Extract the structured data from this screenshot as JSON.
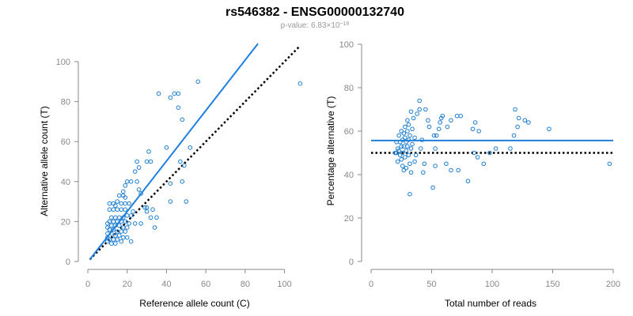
{
  "title": "rs546382 - ENSG00000132740",
  "subtitle": {
    "prefix": "p-value: ",
    "mantissa": "6.83",
    "times": "×",
    "base": "10",
    "exponent": "−18"
  },
  "colors": {
    "points": "#1f7fd0",
    "fit_line": "#1f7fe0",
    "reference_line": "#000000",
    "axis": "#888888"
  },
  "chart_data": [
    {
      "type": "scatter",
      "title": "",
      "xlabel": "Reference allele count (C)",
      "ylabel": "Alternative allele count (T)",
      "xlim": [
        0,
        105
      ],
      "ylim": [
        0,
        100
      ],
      "x_ticks": [
        0,
        20,
        40,
        60,
        80,
        100
      ],
      "y_ticks": [
        0,
        20,
        40,
        60,
        80,
        100
      ],
      "fit_line": {
        "x": [
          1,
          86.5
        ],
        "y": [
          1,
          109
        ]
      },
      "reference_line": {
        "x": [
          1,
          108
        ],
        "y": [
          1,
          108
        ]
      },
      "points": [
        [
          108,
          89
        ],
        [
          56,
          90
        ],
        [
          44,
          84
        ],
        [
          46,
          84
        ],
        [
          36,
          84
        ],
        [
          42,
          82
        ],
        [
          46,
          77
        ],
        [
          48,
          71
        ],
        [
          49,
          48
        ],
        [
          47,
          50
        ],
        [
          52,
          57
        ],
        [
          48,
          40
        ],
        [
          42,
          39
        ],
        [
          40,
          57
        ],
        [
          50,
          30
        ],
        [
          42,
          30
        ],
        [
          31,
          55
        ],
        [
          30,
          50
        ],
        [
          32,
          50
        ],
        [
          25,
          50
        ],
        [
          24,
          45
        ],
        [
          26,
          47
        ],
        [
          22,
          40
        ],
        [
          20,
          40
        ],
        [
          25,
          40
        ],
        [
          26,
          36
        ],
        [
          27,
          34
        ],
        [
          19,
          38
        ],
        [
          18,
          35
        ],
        [
          18,
          33
        ],
        [
          19,
          32
        ],
        [
          16,
          33
        ],
        [
          15,
          30
        ],
        [
          17,
          29
        ],
        [
          19,
          29
        ],
        [
          21,
          29
        ],
        [
          11,
          29
        ],
        [
          13,
          29
        ],
        [
          14,
          28
        ],
        [
          29,
          27
        ],
        [
          30,
          27
        ],
        [
          33,
          26
        ],
        [
          30,
          25
        ],
        [
          35,
          22
        ],
        [
          32,
          22
        ],
        [
          34,
          17
        ],
        [
          27,
          19
        ],
        [
          24,
          19
        ],
        [
          19,
          26
        ],
        [
          17,
          26
        ],
        [
          15,
          26
        ],
        [
          13,
          26
        ],
        [
          11,
          26
        ],
        [
          23,
          25
        ],
        [
          22,
          23
        ],
        [
          20,
          23
        ],
        [
          18,
          22
        ],
        [
          16,
          22
        ],
        [
          14,
          22
        ],
        [
          12,
          22
        ],
        [
          11,
          20
        ],
        [
          13,
          20
        ],
        [
          15,
          20
        ],
        [
          17,
          20
        ],
        [
          19,
          20
        ],
        [
          21,
          19
        ],
        [
          10,
          19
        ],
        [
          12,
          18
        ],
        [
          14,
          18
        ],
        [
          16,
          18
        ],
        [
          18,
          17
        ],
        [
          20,
          17
        ],
        [
          10,
          17
        ],
        [
          11,
          16
        ],
        [
          13,
          16
        ],
        [
          15,
          15
        ],
        [
          17,
          15
        ],
        [
          19,
          15
        ],
        [
          10,
          14
        ],
        [
          12,
          14
        ],
        [
          14,
          13
        ],
        [
          16,
          13
        ],
        [
          18,
          12
        ],
        [
          20,
          12
        ],
        [
          10,
          12
        ],
        [
          11,
          11
        ],
        [
          13,
          11
        ],
        [
          15,
          11
        ],
        [
          17,
          10
        ],
        [
          22,
          10
        ],
        [
          10,
          10
        ],
        [
          12,
          9
        ],
        [
          14,
          9
        ]
      ]
    },
    {
      "type": "scatter",
      "title": "",
      "xlabel": "Total number of reads",
      "ylabel": "Percentage alternative (T)",
      "xlim": [
        0,
        200
      ],
      "ylim": [
        0,
        100
      ],
      "x_ticks": [
        0,
        50,
        100,
        150,
        200
      ],
      "y_ticks": [
        0,
        20,
        40,
        60,
        80,
        100
      ],
      "fit_line": {
        "x": [
          0,
          200
        ],
        "y": [
          55.7,
          55.7
        ]
      },
      "reference_line": {
        "x": [
          0,
          200
        ],
        "y": [
          50,
          50
        ]
      },
      "points": [
        [
          197,
          45
        ],
        [
          147,
          61
        ],
        [
          130,
          64
        ],
        [
          127,
          65
        ],
        [
          122,
          66
        ],
        [
          119,
          70
        ],
        [
          121,
          62
        ],
        [
          118,
          58
        ],
        [
          115,
          52
        ],
        [
          103,
          52
        ],
        [
          98,
          50
        ],
        [
          93,
          45
        ],
        [
          89,
          60
        ],
        [
          86,
          64
        ],
        [
          84,
          61
        ],
        [
          80,
          37
        ],
        [
          85,
          50
        ],
        [
          74,
          67
        ],
        [
          71,
          67
        ],
        [
          66,
          65
        ],
        [
          63,
          62
        ],
        [
          57,
          64
        ],
        [
          58,
          66
        ],
        [
          59,
          67
        ],
        [
          56,
          61
        ],
        [
          54,
          58
        ],
        [
          53,
          52
        ],
        [
          52,
          58
        ],
        [
          51,
          34
        ],
        [
          48,
          62
        ],
        [
          47,
          65
        ],
        [
          45,
          70
        ],
        [
          44,
          45
        ],
        [
          43,
          41
        ],
        [
          42,
          56
        ],
        [
          41,
          52
        ],
        [
          40,
          74
        ],
        [
          40,
          70
        ],
        [
          38,
          68
        ],
        [
          37,
          49
        ],
        [
          36,
          57
        ],
        [
          36,
          46
        ],
        [
          35,
          66
        ],
        [
          34,
          54
        ],
        [
          34,
          61
        ],
        [
          33,
          69
        ],
        [
          33,
          52
        ],
        [
          33,
          41
        ],
        [
          32,
          31
        ],
        [
          32,
          58
        ],
        [
          32,
          45
        ],
        [
          31,
          63
        ],
        [
          31,
          49
        ],
        [
          31,
          56
        ],
        [
          30,
          53
        ],
        [
          30,
          60
        ],
        [
          30,
          65
        ],
        [
          29,
          51
        ],
        [
          29,
          43
        ],
        [
          29,
          55
        ],
        [
          28,
          48
        ],
        [
          28,
          62
        ],
        [
          28,
          57
        ],
        [
          27,
          42
        ],
        [
          27,
          53
        ],
        [
          27,
          59
        ],
        [
          26,
          44
        ],
        [
          26,
          50
        ],
        [
          26,
          56
        ],
        [
          25,
          47
        ],
        [
          25,
          53
        ],
        [
          25,
          60
        ],
        [
          24,
          49
        ],
        [
          24,
          55
        ],
        [
          23,
          51
        ],
        [
          23,
          58
        ],
        [
          22,
          46
        ],
        [
          22,
          52
        ],
        [
          21,
          50
        ],
        [
          21,
          55
        ],
        [
          20,
          50
        ],
        [
          62,
          45
        ],
        [
          66,
          42
        ],
        [
          72,
          42
        ],
        [
          88,
          48
        ],
        [
          53,
          44
        ]
      ]
    }
  ]
}
